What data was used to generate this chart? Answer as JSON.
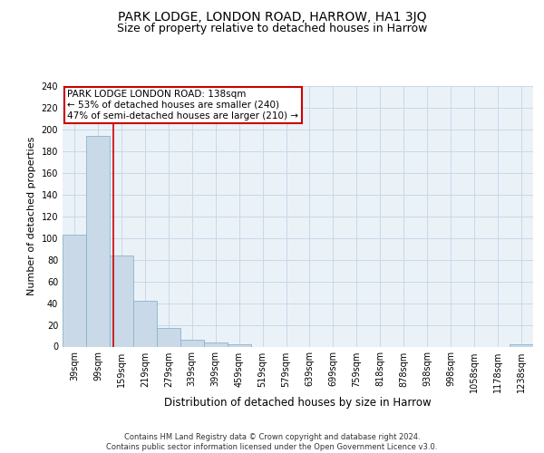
{
  "title": "PARK LODGE, LONDON ROAD, HARROW, HA1 3JQ",
  "subtitle": "Size of property relative to detached houses in Harrow",
  "xlabel": "Distribution of detached houses by size in Harrow",
  "ylabel": "Number of detached properties",
  "categories": [
    "39sqm",
    "99sqm",
    "159sqm",
    "219sqm",
    "279sqm",
    "339sqm",
    "399sqm",
    "459sqm",
    "519sqm",
    "579sqm",
    "639sqm",
    "699sqm",
    "759sqm",
    "818sqm",
    "878sqm",
    "938sqm",
    "998sqm",
    "1058sqm",
    "1178sqm",
    "1238sqm"
  ],
  "values": [
    103,
    194,
    84,
    42,
    17,
    6,
    4,
    2,
    0,
    0,
    0,
    0,
    0,
    0,
    0,
    0,
    0,
    0,
    0,
    2
  ],
  "bar_color": "#c9d9e8",
  "bar_edge_color": "#8ab4cc",
  "grid_color": "#c8d8e8",
  "background_color": "#eaf2f8",
  "vline_color": "#cc0000",
  "annotation_text": "PARK LODGE LONDON ROAD: 138sqm\n← 53% of detached houses are smaller (240)\n47% of semi-detached houses are larger (210) →",
  "annotation_box_color": "#ffffff",
  "annotation_box_edge": "#cc0000",
  "ylim": [
    0,
    240
  ],
  "yticks": [
    0,
    20,
    40,
    60,
    80,
    100,
    120,
    140,
    160,
    180,
    200,
    220,
    240
  ],
  "footer": "Contains HM Land Registry data © Crown copyright and database right 2024.\nContains public sector information licensed under the Open Government Licence v3.0.",
  "title_fontsize": 10,
  "subtitle_fontsize": 9,
  "tick_fontsize": 7,
  "ylabel_fontsize": 8,
  "xlabel_fontsize": 8.5,
  "footer_fontsize": 6,
  "annotation_fontsize": 7.5
}
